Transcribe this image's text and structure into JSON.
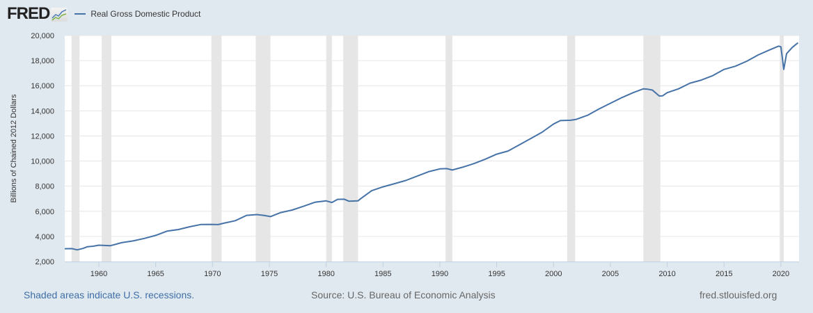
{
  "header": {
    "logo_text": "FRED",
    "logo_icon": "chart-line-icon",
    "legend_label": "Real Gross Domestic Product",
    "series_color": "#4572a7"
  },
  "footer": {
    "recession_note": "Shaded areas indicate U.S. recessions.",
    "source": "Source: U.S. Bureau of Economic Analysis",
    "site": "fred.stlouisfed.org"
  },
  "chart_data": {
    "type": "line",
    "title": "Real Gross Domestic Product",
    "xlabel": "",
    "ylabel": "Billions of Chained 2012 Dollars",
    "xlim": [
      1957.0,
      2021.6
    ],
    "ylim": [
      2000,
      20000
    ],
    "yticks": [
      2000,
      4000,
      6000,
      8000,
      10000,
      12000,
      14000,
      16000,
      18000,
      20000
    ],
    "ytick_labels": [
      "2,000",
      "4,000",
      "6,000",
      "8,000",
      "10,000",
      "12,000",
      "14,000",
      "16,000",
      "18,000",
      "20,000"
    ],
    "xticks": [
      1960,
      1965,
      1970,
      1975,
      1980,
      1985,
      1990,
      1995,
      2000,
      2005,
      2010,
      2015,
      2020
    ],
    "xtick_labels": [
      "1960",
      "1965",
      "1970",
      "1975",
      "1980",
      "1985",
      "1990",
      "1995",
      "2000",
      "2005",
      "2010",
      "2015",
      "2020"
    ],
    "grid": true,
    "legend_position": "top-left",
    "series": [
      {
        "name": "Real Gross Domestic Product",
        "color": "#4572a7",
        "x": [
          1957.0,
          1957.6,
          1958.1,
          1958.6,
          1959.0,
          1959.5,
          1960.0,
          1960.5,
          1961.0,
          1961.5,
          1962.0,
          1963.0,
          1964.0,
          1965.0,
          1966.0,
          1967.0,
          1968.0,
          1969.0,
          1969.9,
          1970.5,
          1971.0,
          1972.0,
          1973.0,
          1973.9,
          1974.5,
          1975.1,
          1976.0,
          1977.0,
          1978.0,
          1979.0,
          1980.0,
          1980.5,
          1981.0,
          1981.6,
          1982.0,
          1982.8,
          1983.0,
          1984.0,
          1985.0,
          1986.0,
          1987.0,
          1988.0,
          1989.0,
          1990.0,
          1990.6,
          1991.1,
          1992.0,
          1993.0,
          1994.0,
          1995.0,
          1996.0,
          1997.0,
          1998.0,
          1999.0,
          2000.0,
          2000.6,
          2001.5,
          2002.0,
          2003.0,
          2004.0,
          2005.0,
          2006.0,
          2007.0,
          2007.9,
          2008.3,
          2008.7,
          2009.3,
          2009.6,
          2010.0,
          2011.0,
          2012.0,
          2013.0,
          2014.0,
          2015.0,
          2016.0,
          2017.0,
          2018.0,
          2019.0,
          2019.8,
          2020.0,
          2020.25,
          2020.5,
          2021.0,
          2021.5
        ],
        "values": [
          3020,
          3030,
          2930,
          3040,
          3180,
          3220,
          3300,
          3280,
          3260,
          3380,
          3500,
          3640,
          3840,
          4080,
          4420,
          4550,
          4770,
          4950,
          4960,
          4940,
          5050,
          5250,
          5680,
          5740,
          5680,
          5580,
          5900,
          6100,
          6400,
          6720,
          6830,
          6700,
          6950,
          6960,
          6800,
          6830,
          6980,
          7640,
          7950,
          8200,
          8450,
          8800,
          9150,
          9380,
          9400,
          9290,
          9510,
          9800,
          10150,
          10550,
          10800,
          11300,
          11800,
          12300,
          12950,
          13220,
          13250,
          13320,
          13650,
          14150,
          14600,
          15050,
          15450,
          15750,
          15720,
          15650,
          15180,
          15200,
          15450,
          15750,
          16200,
          16450,
          16800,
          17300,
          17550,
          17950,
          18450,
          18850,
          19150,
          19100,
          17300,
          18550,
          19050,
          19420
        ]
      }
    ],
    "recessions": [
      [
        1957.6,
        1958.3
      ],
      [
        1960.25,
        1961.1
      ],
      [
        1969.9,
        1970.8
      ],
      [
        1973.8,
        1975.1
      ],
      [
        1980.0,
        1980.5
      ],
      [
        1981.5,
        1982.8
      ],
      [
        1990.5,
        1991.1
      ],
      [
        2001.2,
        2001.9
      ],
      [
        2007.9,
        2009.4
      ],
      [
        2019.9,
        2020.25
      ]
    ]
  }
}
